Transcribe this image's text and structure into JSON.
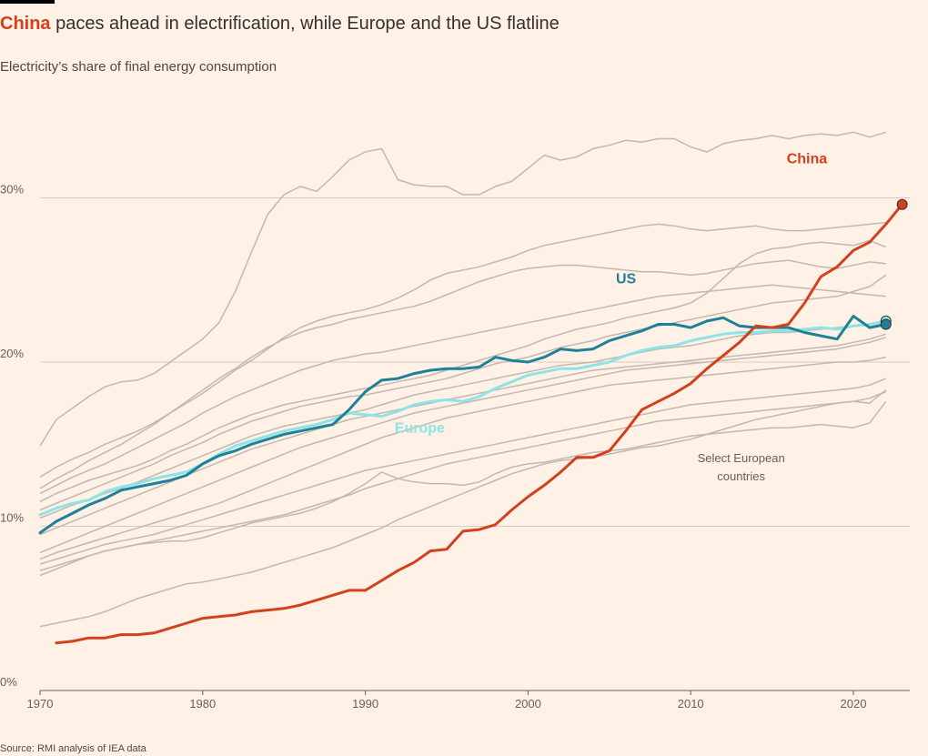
{
  "title_highlight": "China",
  "title_rest": " paces ahead in electrification, while Europe and the US flatline",
  "subtitle": "Electricity’s share of final energy consumption",
  "source": "Source: RMI analysis of IEA data",
  "colors": {
    "china": "#d2401e",
    "us": "#1e8099",
    "europe": "#8ee4e4",
    "countries": "#c2b8af",
    "grid": "#d9cbbf"
  },
  "chart_data": {
    "type": "line",
    "xlim": [
      1970,
      2023
    ],
    "ylim": [
      0,
      34
    ],
    "x_ticks": [
      {
        "value": 1970,
        "label": "1970"
      },
      {
        "value": 1980,
        "label": "1980"
      },
      {
        "value": 1990,
        "label": "1990"
      },
      {
        "value": 2000,
        "label": "2000"
      },
      {
        "value": 2010,
        "label": "2010"
      },
      {
        "value": 2020,
        "label": "2020"
      }
    ],
    "y_ticks": [
      {
        "value": 0,
        "label": "0%"
      },
      {
        "value": 10,
        "label": "10%"
      },
      {
        "value": 20,
        "label": "20%"
      },
      {
        "value": 30,
        "label": "30%"
      }
    ],
    "grid": true,
    "x_start": 1970,
    "series": [
      {
        "name": "China",
        "color_key": "china",
        "start": 1971,
        "marker": true,
        "values": [
          2.9,
          3.0,
          3.2,
          3.2,
          3.4,
          3.4,
          3.5,
          3.8,
          4.1,
          4.4,
          4.5,
          4.6,
          4.8,
          4.9,
          5.0,
          5.2,
          5.5,
          5.8,
          6.1,
          6.1,
          6.7,
          7.3,
          7.8,
          8.5,
          8.6,
          9.7,
          9.8,
          10.1,
          11.0,
          11.8,
          12.5,
          13.3,
          14.2,
          14.2,
          14.6,
          15.8,
          17.1,
          17.6,
          18.1,
          18.7,
          19.6,
          20.4,
          21.2,
          22.2,
          22.1,
          22.3,
          23.6,
          25.2,
          25.8,
          26.8,
          27.3,
          28.4,
          29.6
        ]
      },
      {
        "name": "US",
        "color_key": "us",
        "start": 1970,
        "marker": true,
        "values": [
          9.6,
          10.3,
          10.8,
          11.3,
          11.7,
          12.2,
          12.4,
          12.6,
          12.8,
          13.1,
          13.8,
          14.3,
          14.6,
          15.0,
          15.3,
          15.6,
          15.8,
          16.0,
          16.2,
          17.1,
          18.2,
          18.9,
          19.0,
          19.3,
          19.5,
          19.6,
          19.6,
          19.7,
          20.3,
          20.1,
          20.0,
          20.3,
          20.8,
          20.7,
          20.8,
          21.3,
          21.6,
          21.9,
          22.3,
          22.3,
          22.1,
          22.5,
          22.7,
          22.2,
          22.1,
          22.1,
          22.1,
          21.8,
          21.6,
          21.4,
          22.8,
          22.1,
          22.3
        ]
      },
      {
        "name": "Europe",
        "color_key": "europe",
        "start": 1970,
        "marker": true,
        "values": [
          10.7,
          11.1,
          11.4,
          11.6,
          12.1,
          12.4,
          12.6,
          12.9,
          13.1,
          13.3,
          13.8,
          14.4,
          14.9,
          15.2,
          15.5,
          15.8,
          16.0,
          16.2,
          16.5,
          16.9,
          16.8,
          16.7,
          17.0,
          17.4,
          17.6,
          17.7,
          17.6,
          17.9,
          18.4,
          18.8,
          19.2,
          19.4,
          19.6,
          19.6,
          19.8,
          20.0,
          20.4,
          20.7,
          20.9,
          21.0,
          21.3,
          21.5,
          21.7,
          21.8,
          21.8,
          21.9,
          21.9,
          22.0,
          22.1,
          22.0,
          22.2,
          22.3,
          22.5
        ]
      }
    ],
    "countries_label": "Select European countries",
    "background_series": [
      {
        "start": 1970,
        "values": [
          14.9,
          16.5,
          17.2,
          17.9,
          18.5,
          18.8,
          18.9,
          19.3,
          20.0,
          20.7,
          21.4,
          22.4,
          24.3,
          26.7,
          29.0,
          30.2,
          30.7,
          30.4,
          31.3,
          32.3,
          32.8,
          33.0,
          31.1,
          30.8,
          30.7,
          30.7,
          30.2,
          30.2,
          30.7,
          31.0,
          31.8,
          32.6,
          32.3,
          32.5,
          33.0,
          33.2,
          33.5,
          33.4,
          33.6,
          33.6,
          33.1,
          32.8,
          33.3,
          33.5,
          33.6,
          33.8,
          33.6,
          33.8,
          33.9,
          33.8,
          34.0,
          33.7,
          34.0
        ]
      },
      {
        "start": 1970,
        "values": [
          13.0,
          13.6,
          14.1,
          14.5,
          15.0,
          15.4,
          15.8,
          16.3,
          16.9,
          17.5,
          18.1,
          18.8,
          19.5,
          20.1,
          20.8,
          21.5,
          22.1,
          22.5,
          22.8,
          23.0,
          23.2,
          23.5,
          23.9,
          24.4,
          25.0,
          25.4,
          25.6,
          25.8,
          26.1,
          26.4,
          26.8,
          27.1,
          27.3,
          27.5,
          27.7,
          27.9,
          28.1,
          28.3,
          28.4,
          28.3,
          28.1,
          28.0,
          28.1,
          28.2,
          28.3,
          28.1,
          28.0,
          28.0,
          28.1,
          28.2,
          28.3,
          28.4,
          28.5
        ]
      },
      {
        "start": 1970,
        "values": [
          12.3,
          12.9,
          13.4,
          14.0,
          14.5,
          15.0,
          15.6,
          16.2,
          16.9,
          17.6,
          18.3,
          19.0,
          19.6,
          20.3,
          20.9,
          21.4,
          21.8,
          22.1,
          22.3,
          22.6,
          22.8,
          23.0,
          23.2,
          23.4,
          23.7,
          24.1,
          24.5,
          24.9,
          25.2,
          25.5,
          25.7,
          25.8,
          25.9,
          25.9,
          25.8,
          25.7,
          25.6,
          25.5,
          25.5,
          25.4,
          25.3,
          25.4,
          25.6,
          25.8,
          26.0,
          26.1,
          26.2,
          26.0,
          25.8,
          25.7,
          25.9,
          26.1,
          26.0
        ]
      },
      {
        "start": 1970,
        "values": [
          12.0,
          12.5,
          13.0,
          13.4,
          13.8,
          14.3,
          14.8,
          15.3,
          15.8,
          16.3,
          16.9,
          17.4,
          17.9,
          18.3,
          18.7,
          19.1,
          19.5,
          19.8,
          20.1,
          20.3,
          20.5,
          20.6,
          20.8,
          21.0,
          21.2,
          21.4,
          21.6,
          21.8,
          22.0,
          22.2,
          22.4,
          22.6,
          22.8,
          23.0,
          23.2,
          23.4,
          23.6,
          23.8,
          24.0,
          24.1,
          24.2,
          24.3,
          24.4,
          24.5,
          24.6,
          24.7,
          24.6,
          24.5,
          24.4,
          24.3,
          24.2,
          24.1,
          24.0
        ]
      },
      {
        "start": 1970,
        "values": [
          11.5,
          12.0,
          12.4,
          12.8,
          13.1,
          13.4,
          13.7,
          14.1,
          14.6,
          15.0,
          15.5,
          16.0,
          16.4,
          16.8,
          17.1,
          17.4,
          17.6,
          17.8,
          18.0,
          18.2,
          18.4,
          18.6,
          18.8,
          19.0,
          19.2,
          19.5,
          19.8,
          20.1,
          20.4,
          20.7,
          21.0,
          21.4,
          21.7,
          22.0,
          22.2,
          22.4,
          22.7,
          22.9,
          23.1,
          23.3,
          23.6,
          24.2,
          25.1,
          26.0,
          26.6,
          26.9,
          27.0,
          27.2,
          27.3,
          27.2,
          27.1,
          27.4,
          27.0
        ]
      },
      {
        "start": 1970,
        "values": [
          11.0,
          11.4,
          11.8,
          12.2,
          12.6,
          13.0,
          13.4,
          13.8,
          14.3,
          14.7,
          15.1,
          15.6,
          16.0,
          16.4,
          16.7,
          17.0,
          17.3,
          17.5,
          17.7,
          17.9,
          18.0,
          18.2,
          18.4,
          18.6,
          18.8,
          19.0,
          19.3,
          19.6,
          19.9,
          20.1,
          20.3,
          20.6,
          20.9,
          21.1,
          21.3,
          21.6,
          21.8,
          22.0,
          22.2,
          22.4,
          22.6,
          22.8,
          23.0,
          23.2,
          23.4,
          23.6,
          23.7,
          23.8,
          23.9,
          24.0,
          24.3,
          24.6,
          25.3
        ]
      },
      {
        "start": 1970,
        "values": [
          10.5,
          10.9,
          11.3,
          11.6,
          12.0,
          12.3,
          12.7,
          13.1,
          13.5,
          13.9,
          14.3,
          14.7,
          15.1,
          15.5,
          15.8,
          16.1,
          16.3,
          16.5,
          16.7,
          16.9,
          17.1,
          17.4,
          17.7,
          18.0,
          18.2,
          18.4,
          18.6,
          18.8,
          19.0,
          19.2,
          19.4,
          19.6,
          19.8,
          19.9,
          20.0,
          20.2,
          20.4,
          20.6,
          20.8,
          20.9,
          21.0,
          21.2,
          21.4,
          21.6,
          21.7,
          21.8,
          21.8,
          21.9,
          22.0,
          22.1,
          22.2,
          22.3,
          22.4
        ]
      },
      {
        "start": 1970,
        "values": [
          9.5,
          9.9,
          10.3,
          10.7,
          11.1,
          11.5,
          11.9,
          12.3,
          12.7,
          13.1,
          13.5,
          13.9,
          14.3,
          14.7,
          15.0,
          15.3,
          15.6,
          15.9,
          16.2,
          16.5,
          16.7,
          16.9,
          17.1,
          17.3,
          17.5,
          17.7,
          17.9,
          18.1,
          18.3,
          18.5,
          18.7,
          18.9,
          19.1,
          19.3,
          19.5,
          19.6,
          19.7,
          19.8,
          19.9,
          20.0,
          20.1,
          20.2,
          20.3,
          20.4,
          20.5,
          20.6,
          20.7,
          20.8,
          20.9,
          21.0,
          21.2,
          21.4,
          21.7
        ]
      },
      {
        "start": 1970,
        "values": [
          8.4,
          8.8,
          9.2,
          9.6,
          10.0,
          10.4,
          10.8,
          11.2,
          11.6,
          12.0,
          12.4,
          12.8,
          13.2,
          13.6,
          14.0,
          14.4,
          14.8,
          15.1,
          15.4,
          15.7,
          16.0,
          16.3,
          16.6,
          16.9,
          17.1,
          17.3,
          17.5,
          17.7,
          17.9,
          18.1,
          18.3,
          18.5,
          18.7,
          18.9,
          19.1,
          19.3,
          19.5,
          19.6,
          19.7,
          19.8,
          19.9,
          20.0,
          20.1,
          20.2,
          20.3,
          20.4,
          20.5,
          20.6,
          20.7,
          20.8,
          21.0,
          21.2,
          21.5
        ]
      },
      {
        "start": 1970,
        "values": [
          8.0,
          8.4,
          8.7,
          9.0,
          9.3,
          9.6,
          9.9,
          10.2,
          10.5,
          10.8,
          11.1,
          11.4,
          11.8,
          12.2,
          12.6,
          13.0,
          13.4,
          13.8,
          14.2,
          14.6,
          15.0,
          15.4,
          15.7,
          16.0,
          16.3,
          16.6,
          16.8,
          17.0,
          17.2,
          17.4,
          17.6,
          17.8,
          18.0,
          18.2,
          18.4,
          18.6,
          18.7,
          18.8,
          18.9,
          19.0,
          19.1,
          19.2,
          19.3,
          19.4,
          19.5,
          19.6,
          19.7,
          19.8,
          19.9,
          20.0,
          20.0,
          20.1,
          20.3
        ]
      },
      {
        "start": 1970,
        "values": [
          7.7,
          8.0,
          8.3,
          8.6,
          8.9,
          9.1,
          9.3,
          9.5,
          9.8,
          10.1,
          10.4,
          10.7,
          11.0,
          11.3,
          11.6,
          11.9,
          12.2,
          12.5,
          12.8,
          13.1,
          13.4,
          13.6,
          13.8,
          14.0,
          14.2,
          14.4,
          14.6,
          14.8,
          15.0,
          15.2,
          15.4,
          15.6,
          15.8,
          16.0,
          16.2,
          16.4,
          16.6,
          16.8,
          17.0,
          17.2,
          17.4,
          17.5,
          17.6,
          17.7,
          17.8,
          17.9,
          18.0,
          18.1,
          18.2,
          18.3,
          18.4,
          18.6,
          19.0
        ]
      },
      {
        "start": 1970,
        "values": [
          7.3,
          7.6,
          7.9,
          8.2,
          8.5,
          8.7,
          8.9,
          9.1,
          9.3,
          9.5,
          9.7,
          9.9,
          10.1,
          10.3,
          10.5,
          10.7,
          11.0,
          11.3,
          11.6,
          11.9,
          12.3,
          12.6,
          12.9,
          13.2,
          13.5,
          13.8,
          14.0,
          14.2,
          14.4,
          14.6,
          14.8,
          15.0,
          15.2,
          15.4,
          15.6,
          15.8,
          16.0,
          16.2,
          16.4,
          16.5,
          16.6,
          16.7,
          16.8,
          16.9,
          17.0,
          17.1,
          17.2,
          17.3,
          17.4,
          17.5,
          17.6,
          17.8,
          18.2
        ]
      },
      {
        "start": 1970,
        "values": [
          7.0,
          7.4,
          7.8,
          8.2,
          8.5,
          8.7,
          8.9,
          9.0,
          9.1,
          9.1,
          9.3,
          9.6,
          9.9,
          10.2,
          10.4,
          10.6,
          10.8,
          11.1,
          11.5,
          12.0,
          12.6,
          13.3,
          12.9,
          12.7,
          12.6,
          12.6,
          12.5,
          12.7,
          13.2,
          13.6,
          13.8,
          13.9,
          14.1,
          14.3,
          14.5,
          14.6,
          14.7,
          14.9,
          15.1,
          15.3,
          15.5,
          15.6,
          15.7,
          15.8,
          15.9,
          16.0,
          16.0,
          16.1,
          16.2,
          16.1,
          16.0,
          16.3,
          17.6
        ]
      },
      {
        "start": 1970,
        "values": [
          3.9,
          4.1,
          4.3,
          4.5,
          4.8,
          5.2,
          5.6,
          5.9,
          6.2,
          6.5,
          6.6,
          6.8,
          7.0,
          7.2,
          7.5,
          7.8,
          8.1,
          8.4,
          8.7,
          9.1,
          9.5,
          9.9,
          10.4,
          10.8,
          11.2,
          11.6,
          12.0,
          12.4,
          12.8,
          13.2,
          13.5,
          13.8,
          14.0,
          14.1,
          14.2,
          14.4,
          14.6,
          14.8,
          14.9,
          15.1,
          15.3,
          15.6,
          15.9,
          16.2,
          16.5,
          16.7,
          16.9,
          17.1,
          17.3,
          17.5,
          17.6,
          17.5,
          18.3
        ]
      }
    ]
  }
}
